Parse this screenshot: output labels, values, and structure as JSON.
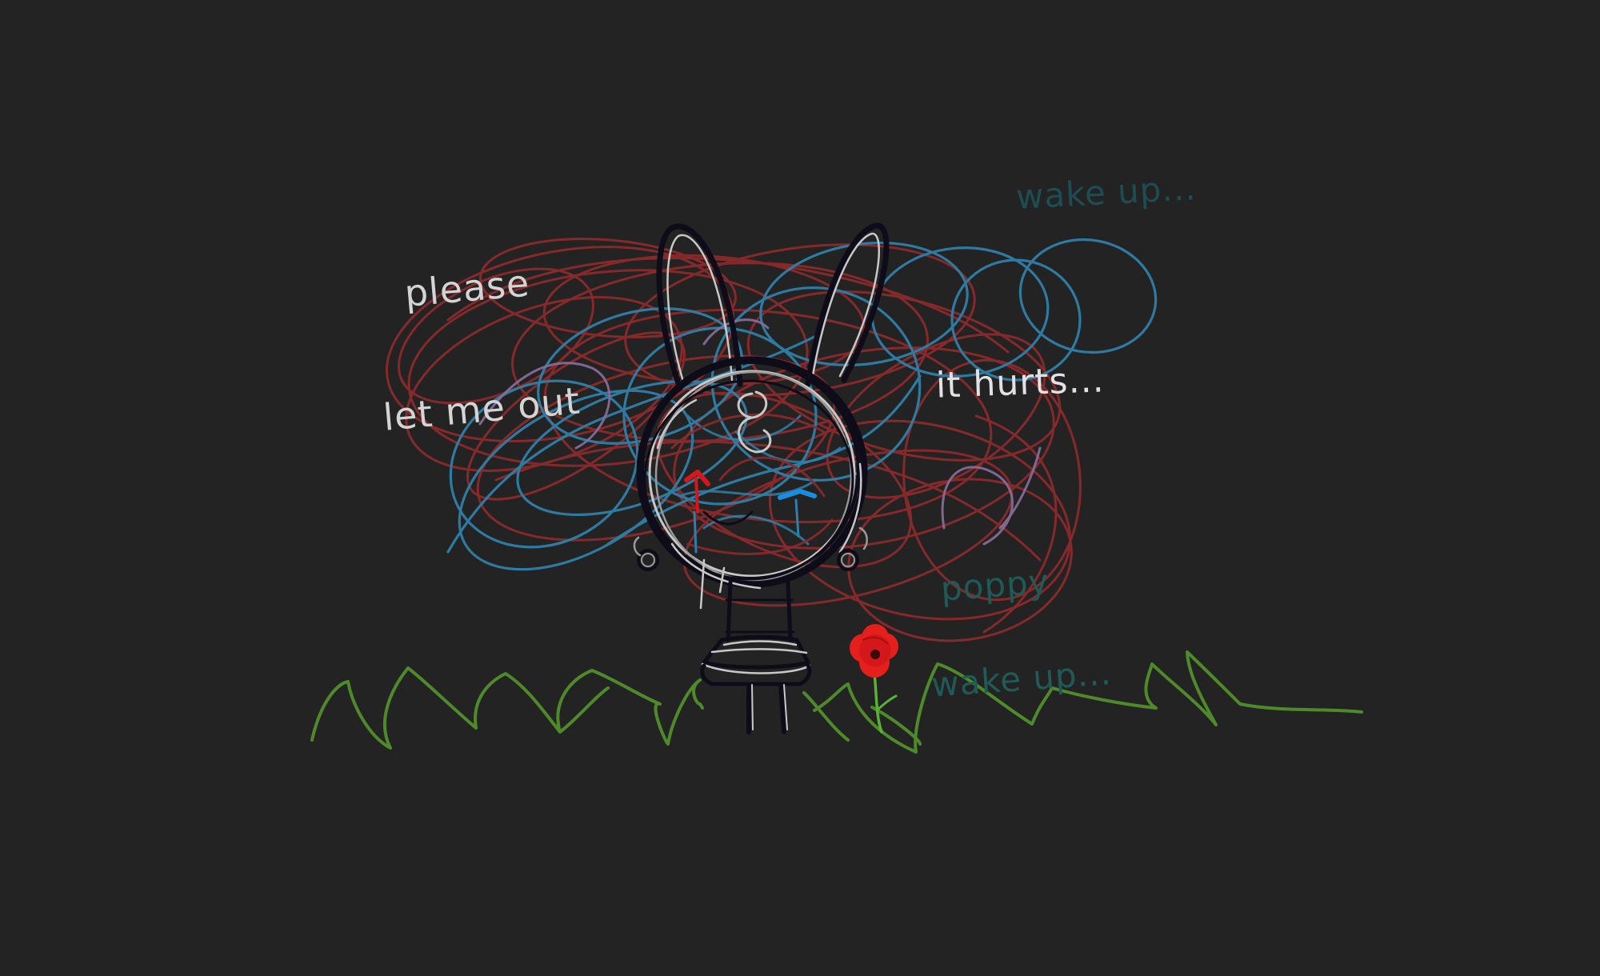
{
  "drawing": {
    "texts": {
      "please": [
        "please",
        "let me out"
      ],
      "hurts": "it hurts...",
      "wake": "wake up...",
      "poppy": [
        "poppy",
        "wake up..."
      ]
    },
    "colors": {
      "background": "#232323",
      "red_scribble": "#8b2a2b",
      "blue_scribble": "#2f7fa8",
      "purple_scribble": "#8a6f9c",
      "grass": "#4f8a2a",
      "poppy_flower": "#e5201c",
      "bunny_outline": "#0e0c18",
      "bunny_highlight": "#c8c8c8",
      "left_eye": "#d3171a",
      "right_eye": "#1a8de0"
    },
    "icons": [
      "bunny-light-bulb-icon",
      "poppy-flower-icon",
      "grass-icon",
      "scribble-icon"
    ]
  }
}
